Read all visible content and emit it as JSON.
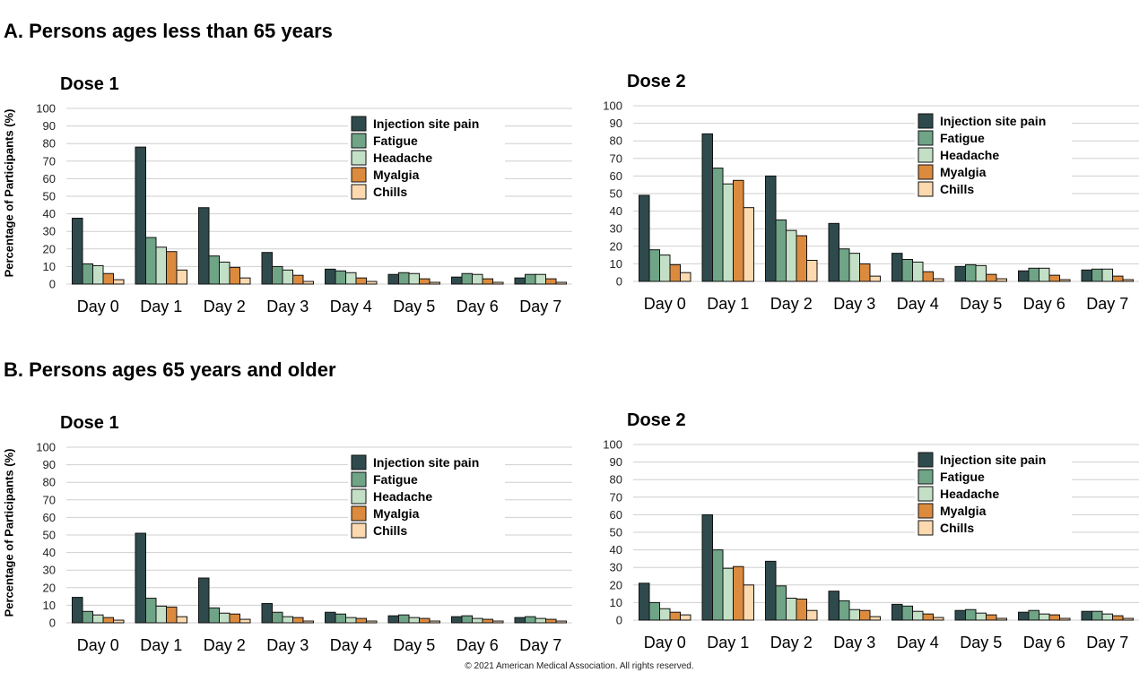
{
  "sections": {
    "a_title": "A. Persons ages less than 65 years",
    "b_title": "B. Persons ages 65 years and older"
  },
  "ylabel": "Percentage of  Participants (%)",
  "copyright": "© 2021 American Medical Association. All rights reserved.",
  "colors": {
    "Injection site pain": "#2f4a4c",
    "Fatigue": "#6fa487",
    "Headache": "#c3e0c6",
    "Myalgia": "#dc8b3e",
    "Chills": "#fdd9b0"
  },
  "chart_data": [
    {
      "type": "bar",
      "title": "Dose 1",
      "ylim": [
        0,
        100
      ],
      "yticks": [
        0,
        10,
        20,
        30,
        40,
        50,
        60,
        70,
        80,
        90,
        100
      ],
      "grid": true,
      "legend": "top-right",
      "categories": [
        "Day 0",
        "Day 1",
        "Day 2",
        "Day 3",
        "Day 4",
        "Day 5",
        "Day 6",
        "Day 7"
      ],
      "series": [
        {
          "name": "Injection site pain",
          "values": [
            37.5,
            78,
            43.5,
            18,
            8.5,
            5.5,
            4,
            3.5
          ]
        },
        {
          "name": "Fatigue",
          "values": [
            11.5,
            26.5,
            16,
            10,
            7.5,
            6.5,
            6,
            5.5
          ]
        },
        {
          "name": "Headache",
          "values": [
            10.5,
            21,
            12.5,
            8,
            6.5,
            6,
            5.5,
            5.5
          ]
        },
        {
          "name": "Myalgia",
          "values": [
            6,
            18.5,
            9.5,
            5,
            3.5,
            3,
            3,
            3
          ]
        },
        {
          "name": "Chills",
          "values": [
            2.5,
            8,
            3.5,
            1.5,
            1.5,
            1,
            1,
            1
          ]
        }
      ]
    },
    {
      "type": "bar",
      "title": "Dose 2",
      "ylim": [
        0,
        100
      ],
      "yticks": [
        0,
        10,
        20,
        30,
        40,
        50,
        60,
        70,
        80,
        90,
        100
      ],
      "grid": true,
      "legend": "top-right",
      "categories": [
        "Day 0",
        "Day 1",
        "Day 2",
        "Day 3",
        "Day 4",
        "Day 5",
        "Day 6",
        "Day 7"
      ],
      "series": [
        {
          "name": "Injection site pain",
          "values": [
            49,
            84,
            60,
            33,
            16,
            8.5,
            6,
            6.5
          ]
        },
        {
          "name": "Fatigue",
          "values": [
            18,
            64.5,
            35,
            18.5,
            12.5,
            9.5,
            7.5,
            7
          ]
        },
        {
          "name": "Headache",
          "values": [
            15,
            55.5,
            29,
            16,
            11,
            9,
            7.5,
            7
          ]
        },
        {
          "name": "Myalgia",
          "values": [
            9.5,
            57.5,
            26,
            10,
            5.5,
            4,
            3.5,
            3
          ]
        },
        {
          "name": "Chills",
          "values": [
            5,
            42,
            12,
            3,
            1.5,
            1.5,
            1,
            1
          ]
        }
      ]
    },
    {
      "type": "bar",
      "title": "Dose 1",
      "ylim": [
        0,
        100
      ],
      "yticks": [
        0,
        10,
        20,
        30,
        40,
        50,
        60,
        70,
        80,
        90,
        100
      ],
      "grid": true,
      "legend": "top-right",
      "categories": [
        "Day 0",
        "Day 1",
        "Day 2",
        "Day 3",
        "Day 4",
        "Day 5",
        "Day 6",
        "Day 7"
      ],
      "series": [
        {
          "name": "Injection site pain",
          "values": [
            14.5,
            51,
            25.5,
            11,
            6,
            4,
            3.5,
            3
          ]
        },
        {
          "name": "Fatigue",
          "values": [
            6.5,
            14,
            8.5,
            6,
            5,
            4.5,
            4,
            3.5
          ]
        },
        {
          "name": "Headache",
          "values": [
            4.5,
            9.5,
            5.5,
            3.5,
            3,
            3,
            2.5,
            2.5
          ]
        },
        {
          "name": "Myalgia",
          "values": [
            3,
            9,
            5,
            3,
            2.5,
            2.5,
            2,
            2
          ]
        },
        {
          "name": "Chills",
          "values": [
            1.5,
            3.5,
            2,
            1,
            1,
            1,
            1,
            1
          ]
        }
      ]
    },
    {
      "type": "bar",
      "title": "Dose 2",
      "ylim": [
        0,
        100
      ],
      "yticks": [
        0,
        10,
        20,
        30,
        40,
        50,
        60,
        70,
        80,
        90,
        100
      ],
      "grid": true,
      "legend": "top-right",
      "categories": [
        "Day 0",
        "Day 1",
        "Day 2",
        "Day 3",
        "Day 4",
        "Day 5",
        "Day 6",
        "Day 7"
      ],
      "series": [
        {
          "name": "Injection site pain",
          "values": [
            21,
            60,
            33.5,
            16.5,
            9,
            5.5,
            4.5,
            5
          ]
        },
        {
          "name": "Fatigue",
          "values": [
            10,
            40,
            19.5,
            11,
            8,
            6,
            5.5,
            5
          ]
        },
        {
          "name": "Headache",
          "values": [
            6.5,
            29.5,
            12.5,
            6,
            5,
            4,
            3.5,
            3.5
          ]
        },
        {
          "name": "Myalgia",
          "values": [
            4.5,
            30.5,
            12,
            5.5,
            3.5,
            3,
            3,
            2.5
          ]
        },
        {
          "name": "Chills",
          "values": [
            3,
            20,
            5.5,
            2,
            1.5,
            1,
            1,
            1
          ]
        }
      ]
    }
  ]
}
